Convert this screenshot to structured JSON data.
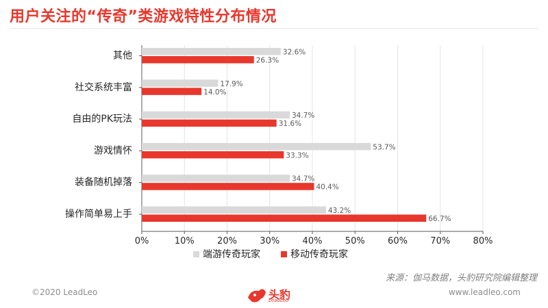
{
  "title": "用户关注的“传奇”类游戏特性分布情况",
  "source": "来源：伽马数据，头豹研究院编辑整理",
  "footer": {
    "copyright": "©2020 LeadLeo",
    "website": "www.leadleo.com",
    "logo_text": "头豹",
    "logo_sub": "LeadLeo"
  },
  "colors": {
    "accent": "#e8372c",
    "pc": "#d9d9d9",
    "mobile": "#e8372c"
  },
  "chart_data": {
    "type": "bar",
    "orientation": "horizontal",
    "categories": [
      "其他",
      "社交系统丰富",
      "自由的PK玩法",
      "游戏情怀",
      "装备随机掉落",
      "操作简单易上手"
    ],
    "series": [
      {
        "name": "端游传奇玩家",
        "color": "#d9d9d9",
        "values": [
          32.6,
          17.9,
          34.7,
          53.7,
          34.7,
          43.2
        ]
      },
      {
        "name": "移动传奇玩家",
        "color": "#e8372c",
        "values": [
          26.3,
          14.0,
          31.6,
          33.3,
          40.4,
          66.7
        ]
      }
    ],
    "xlim": [
      0,
      80
    ],
    "xticks": [
      "0%",
      "10%",
      "20%",
      "30%",
      "40%",
      "50%",
      "60%",
      "70%",
      "80%"
    ],
    "value_suffix": "%",
    "grid": true,
    "legend_position": "bottom-center"
  }
}
